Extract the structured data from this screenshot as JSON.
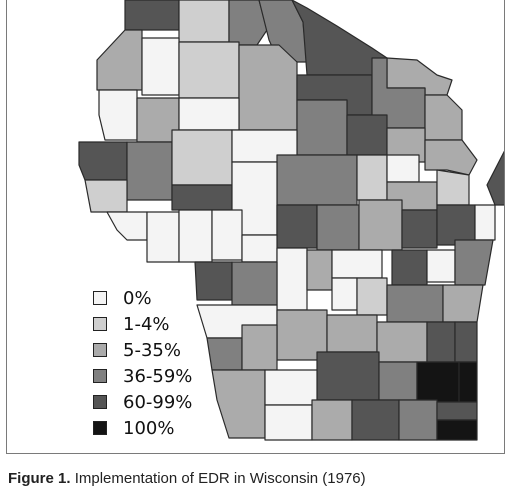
{
  "caption": {
    "label": "Figure 1.",
    "text": "Implementation of EDR in Wisconsin (1976)"
  },
  "legend": {
    "items": [
      {
        "label": "0%",
        "color": "#f4f4f4"
      },
      {
        "label": "1-4%",
        "color": "#cfcfcf"
      },
      {
        "label": "5-35%",
        "color": "#ababab"
      },
      {
        "label": "36-59%",
        "color": "#808080"
      },
      {
        "label": "60-99%",
        "color": "#555555"
      },
      {
        "label": "100%",
        "color": "#141414"
      }
    ]
  }
}
